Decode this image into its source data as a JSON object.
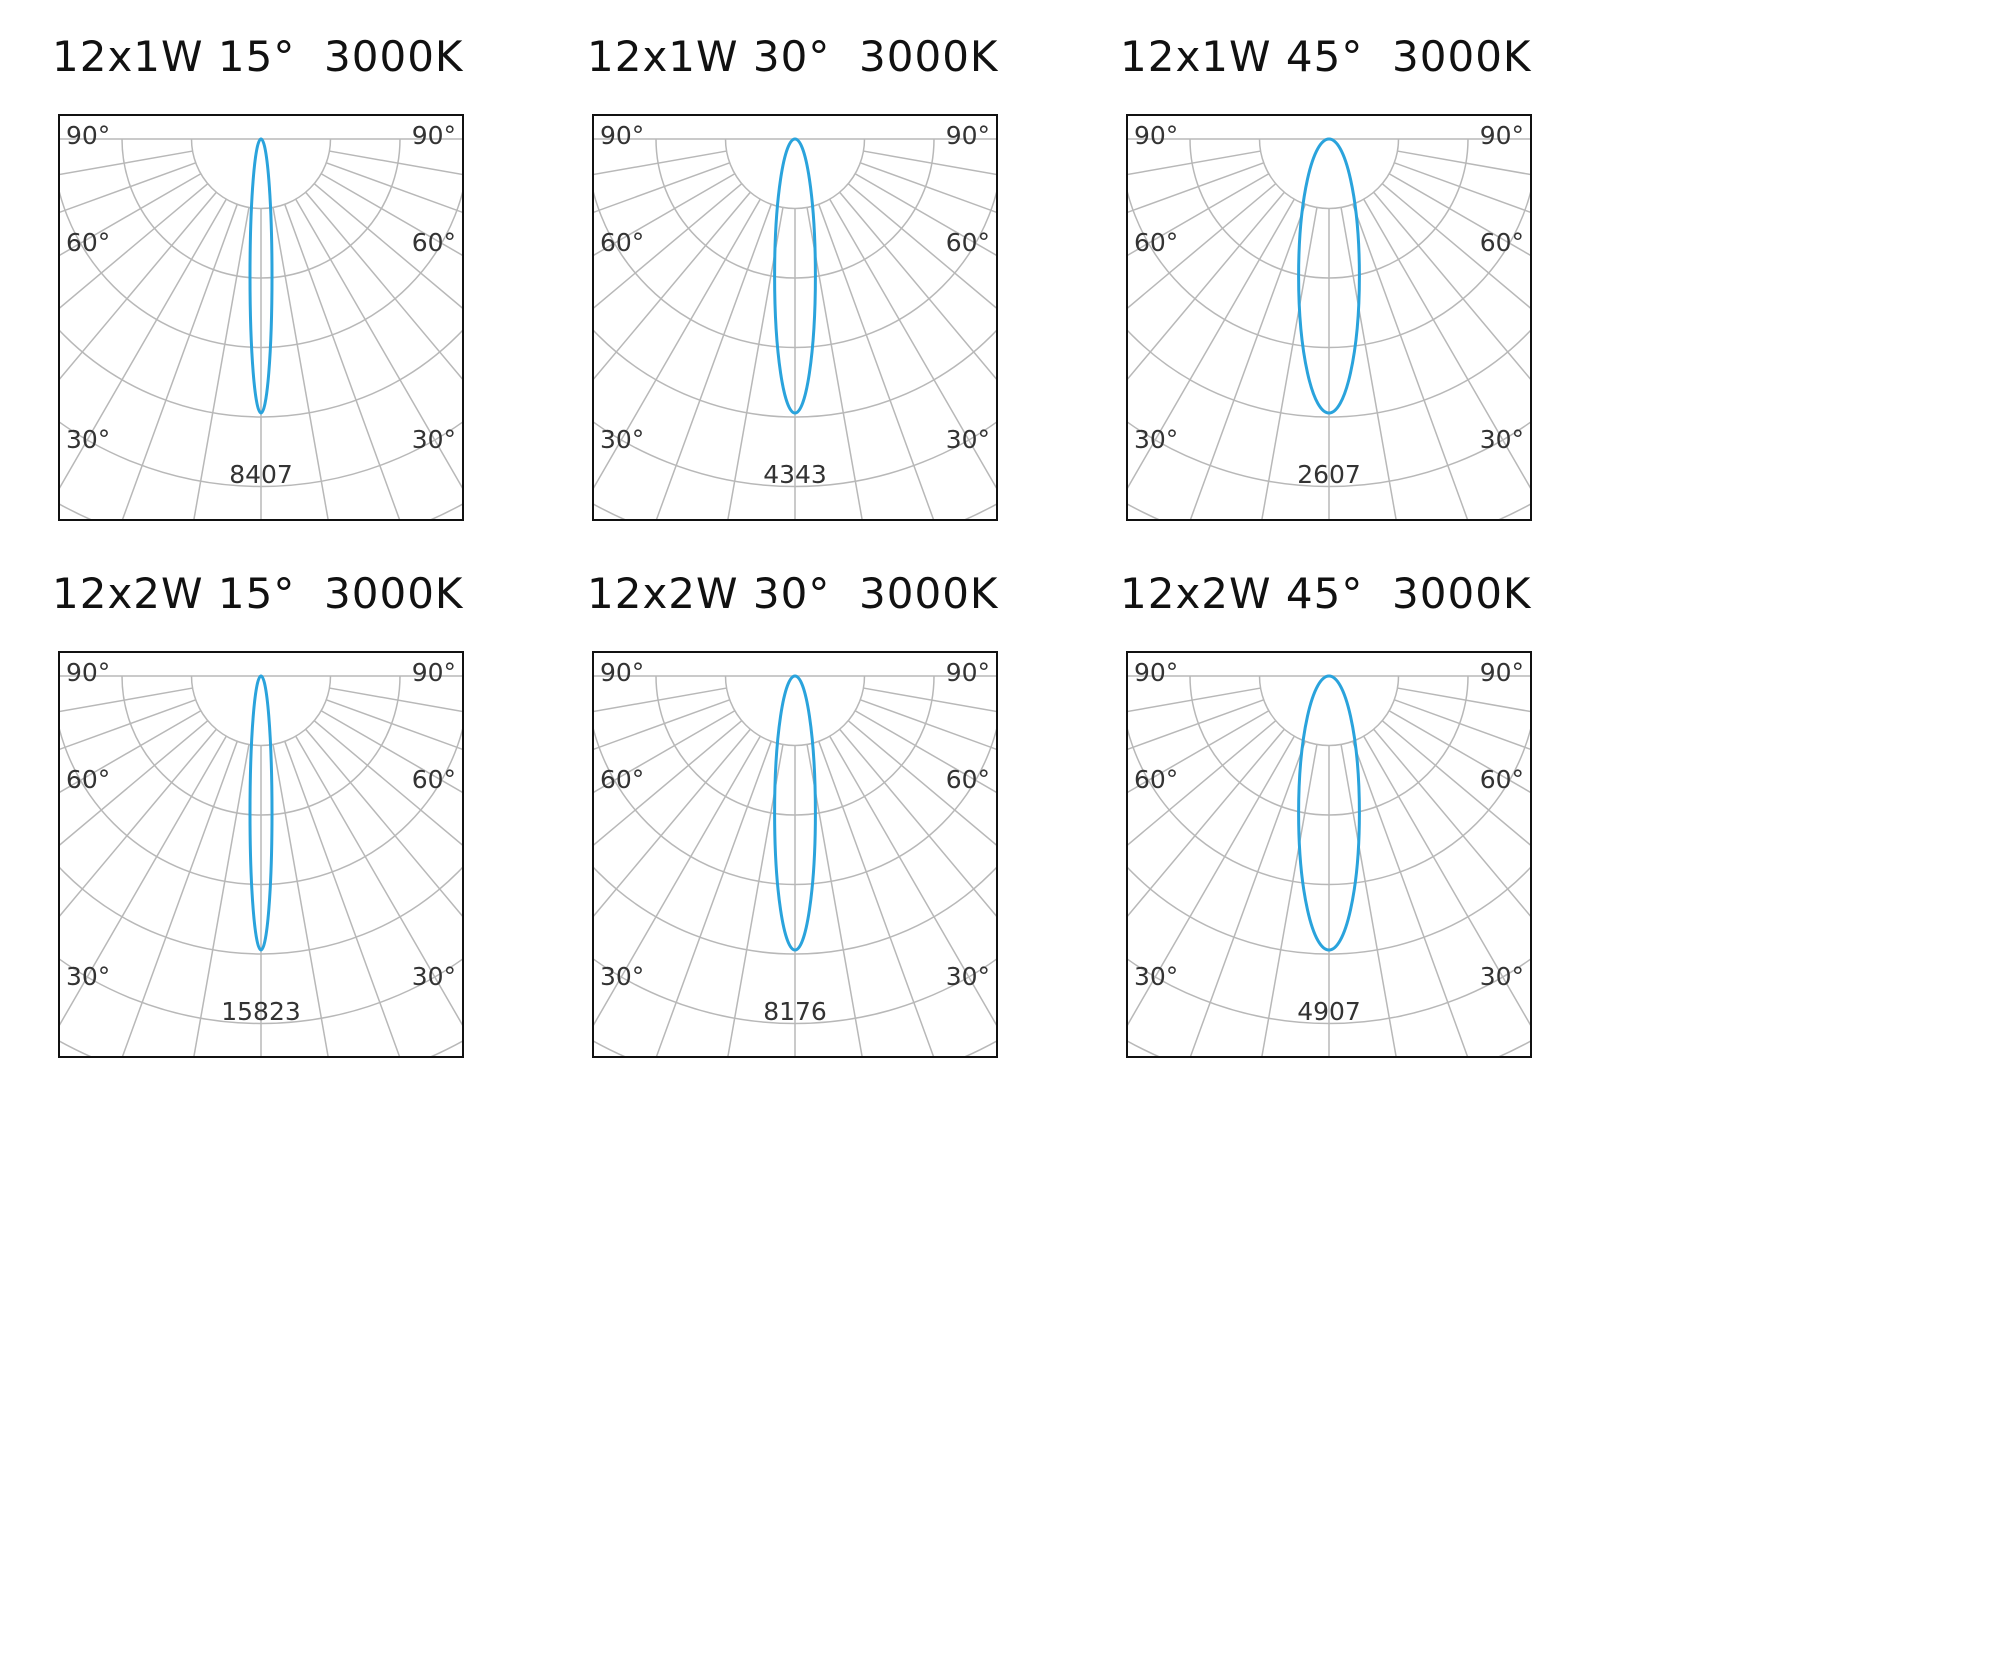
{
  "colors": {
    "curve": "#2aa3dc",
    "grid": "#b8b8b8",
    "frame": "#111111",
    "text": "#333333"
  },
  "panels": [
    {
      "title": "12x1W 15°  3000K",
      "peak": "8407",
      "beam_angle": 15,
      "angle_labels": {
        "a90": "90°",
        "a60": "60°",
        "a30": "30°"
      }
    },
    {
      "title": "12x1W 30°  3000K",
      "peak": "4343",
      "beam_angle": 30,
      "angle_labels": {
        "a90": "90°",
        "a60": "60°",
        "a30": "30°"
      }
    },
    {
      "title": "12x1W 45°  3000K",
      "peak": "2607",
      "beam_angle": 45,
      "angle_labels": {
        "a90": "90°",
        "a60": "60°",
        "a30": "30°"
      }
    },
    {
      "title": "12x2W 15°  3000K",
      "peak": "15823",
      "beam_angle": 15,
      "angle_labels": {
        "a90": "90°",
        "a60": "60°",
        "a30": "30°"
      }
    },
    {
      "title": "12x2W 30°  3000K",
      "peak": "8176",
      "beam_angle": 30,
      "angle_labels": {
        "a90": "90°",
        "a60": "60°",
        "a30": "30°"
      }
    },
    {
      "title": "12x2W 45°  3000K",
      "peak": "4907",
      "beam_angle": 45,
      "angle_labels": {
        "a90": "90°",
        "a60": "60°",
        "a30": "30°"
      }
    }
  ]
}
